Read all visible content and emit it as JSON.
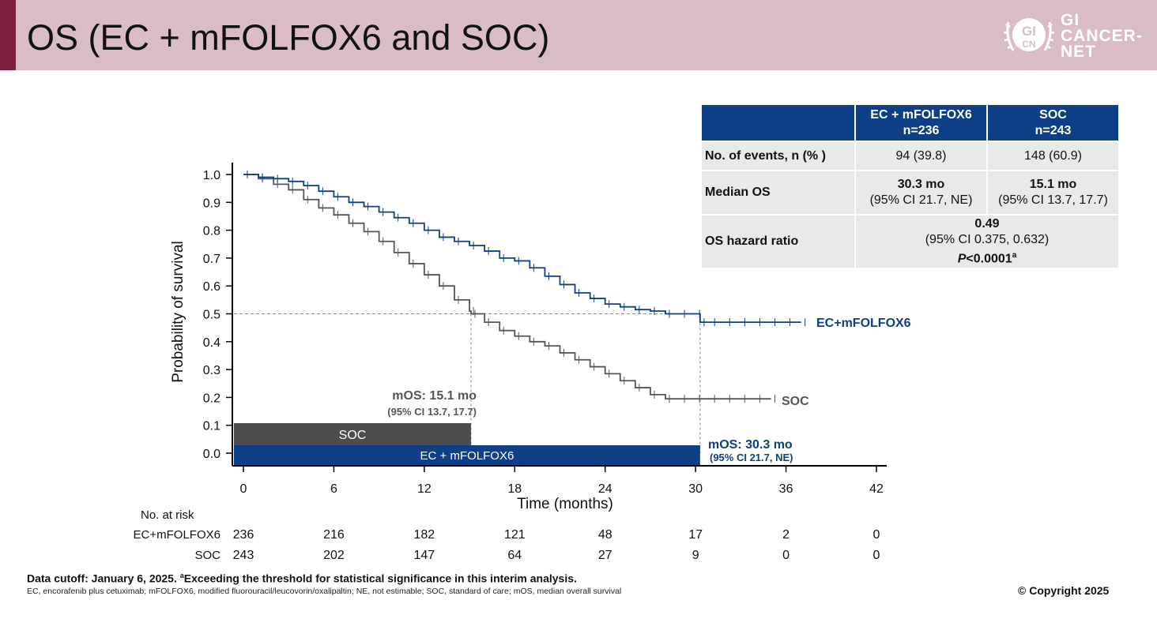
{
  "slide": {
    "title": "OS (EC + mFOLFOX6 and SOC)"
  },
  "logo": {
    "mark_top": "GI",
    "mark_bottom": "CN",
    "line1": "GI",
    "line2": "CANCER-",
    "line3": "NET"
  },
  "table": {
    "col1_line1": "EC + mFOLFOX6",
    "col1_line2": "n=236",
    "col2_line1": "SOC",
    "col2_line2": "n=243",
    "rows": [
      {
        "label": "No. of events, n (% )",
        "v1": "94 (39.8)",
        "v2": "148 (60.9)"
      },
      {
        "label": "Median OS",
        "v1_a": "30.3 mo",
        "v1_b": "(95% CI 21.7, NE)",
        "v2_a": "15.1 mo",
        "v2_b": "(95% CI 13.7, 17.7)"
      },
      {
        "label": "OS hazard ratio",
        "hr": "0.49",
        "ci": "(95% CI 0.375, 0.632)",
        "p_italic": "P",
        "p_rest": "<0.0001",
        "p_sup": "a"
      }
    ]
  },
  "chart_data": {
    "type": "line",
    "subtype": "kaplan-meier",
    "xlabel": "Time (months)",
    "ylabel": "Probability of survival",
    "xlim": [
      0,
      42
    ],
    "ylim": [
      0,
      1.0
    ],
    "xticks": [
      "0",
      "6",
      "12",
      "18",
      "24",
      "30",
      "36",
      "42"
    ],
    "yticks": [
      "0.0",
      "0.1",
      "0.2",
      "0.3",
      "0.4",
      "0.5",
      "0.6",
      "0.7",
      "0.8",
      "0.9",
      "1.0"
    ],
    "reference_line_y": 0.5,
    "series": [
      {
        "name": "EC+mFOLFOX6",
        "color": "#0e3f87",
        "x": [
          0,
          1,
          2,
          3,
          4,
          5,
          6,
          7,
          8,
          9,
          10,
          11,
          12,
          13,
          14,
          15,
          16,
          17,
          18,
          19,
          20,
          21,
          22,
          23,
          24,
          25,
          26,
          27,
          28,
          29,
          30,
          30.3,
          31,
          32,
          33,
          34,
          35,
          36,
          37
        ],
        "y": [
          1.0,
          0.99,
          0.985,
          0.975,
          0.96,
          0.94,
          0.92,
          0.9,
          0.885,
          0.865,
          0.845,
          0.825,
          0.8,
          0.775,
          0.76,
          0.745,
          0.725,
          0.7,
          0.69,
          0.665,
          0.635,
          0.605,
          0.575,
          0.555,
          0.535,
          0.525,
          0.515,
          0.51,
          0.5,
          0.5,
          0.5,
          0.47,
          0.47,
          0.47,
          0.47,
          0.47,
          0.47,
          0.47,
          0.47
        ]
      },
      {
        "name": "SOC",
        "color": "#555555",
        "x": [
          0,
          1,
          2,
          3,
          4,
          5,
          6,
          7,
          8,
          9,
          10,
          11,
          12,
          13,
          14,
          15,
          15.1,
          16,
          17,
          18,
          19,
          20,
          21,
          22,
          23,
          24,
          25,
          26,
          27,
          28,
          29,
          30,
          31,
          32,
          33,
          34,
          35
        ],
        "y": [
          1.0,
          0.985,
          0.965,
          0.945,
          0.91,
          0.88,
          0.855,
          0.825,
          0.795,
          0.76,
          0.72,
          0.68,
          0.64,
          0.6,
          0.55,
          0.51,
          0.5,
          0.47,
          0.44,
          0.42,
          0.4,
          0.385,
          0.36,
          0.335,
          0.31,
          0.285,
          0.26,
          0.235,
          0.21,
          0.195,
          0.195,
          0.195,
          0.195,
          0.195,
          0.195,
          0.195,
          0.195
        ]
      }
    ],
    "median_bars": [
      {
        "label": "SOC",
        "value": 15.1,
        "color": "#4d4d4f"
      },
      {
        "label": "EC + mFOLFOX6",
        "value": 30.3,
        "color": "#0e3f87"
      }
    ],
    "annotations": {
      "soc_mos": "mOS: 15.1 mo",
      "soc_ci": "(95% CI 13.7, 17.7)",
      "ec_mos": "mOS: 30.3 mo",
      "ec_ci": "(95% CI 21.7, NE)",
      "soc_label": "SOC",
      "ec_label": "EC+mFOLFOX6"
    },
    "at_risk": {
      "title": "No. at risk",
      "rows": [
        {
          "label": "EC+mFOLFOX6",
          "values": [
            "236",
            "216",
            "182",
            "121",
            "48",
            "17",
            "2",
            "0"
          ]
        },
        {
          "label": "SOC",
          "values": [
            "243",
            "202",
            "147",
            "64",
            "27",
            "9",
            "0",
            "0"
          ]
        }
      ]
    }
  },
  "footer": {
    "line1_a": "Data cutoff: January 6, 2025. ",
    "line1_sup": "a",
    "line1_b": "Exceeding the threshold for statistical significance in this interim analysis.",
    "line2": "EC, encorafenib plus cetuximab; mFOLFOX6, modified fluorouracil/leucovorin/oxalipaltin; NE, not estimable; SOC, standard of care; mOS, median overall survival",
    "copyright": "© Copyright 2025"
  }
}
